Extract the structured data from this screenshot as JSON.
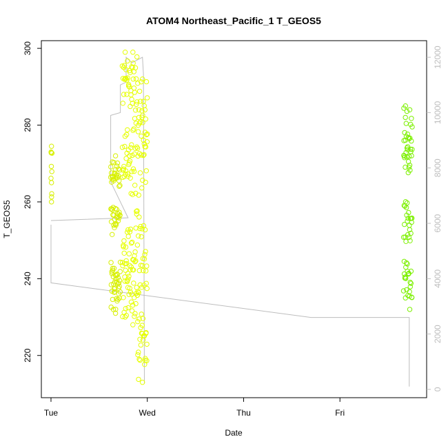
{
  "chart_data": {
    "type": "scatter",
    "title": "ATOM4 Northeast_Pacific_1 T_GEOS5",
    "xlabel": "Date",
    "ylabel": "T_GEOS5",
    "x_ticks": [
      "Tue",
      "Wed",
      "Thu",
      "Fri"
    ],
    "x_range_days": [
      -0.1,
      3.9
    ],
    "ylim": [
      209,
      302
    ],
    "y_ticks": [
      220,
      240,
      260,
      280,
      300
    ],
    "y2_ticks": [
      0,
      2000,
      4000,
      6000,
      8000,
      10000,
      12000
    ],
    "y2lim": [
      -300,
      12600
    ],
    "grid": false,
    "colors": {
      "early": "#d7f000",
      "mid": "#e6ff00",
      "late": "#7cf000",
      "altitude_line": "#bdbdbd"
    },
    "series": [
      {
        "segments": [
          {
            "x_start": 0.0,
            "x_end": 0.01,
            "y_min": 260,
            "y_max": 274.5,
            "color": "#d7f000"
          },
          {
            "x_start": 0.62,
            "x_end": 0.72,
            "y_min": 231,
            "y_max": 272,
            "color": "#d7f000"
          },
          {
            "x_start": 0.74,
            "x_end": 0.8,
            "y_min": 230,
            "y_max": 299,
            "color": "#e6ff00"
          },
          {
            "x_start": 0.8,
            "x_end": 0.9,
            "y_min": 228,
            "y_max": 299,
            "color": "#e6ff00"
          },
          {
            "x_start": 0.9,
            "x_end": 1.0,
            "y_min": 213,
            "y_max": 292,
            "color": "#e6ff00"
          },
          {
            "x_start": 3.66,
            "x_end": 3.7,
            "y_min": 235,
            "y_max": 285,
            "color": "#7cf000"
          },
          {
            "x_start": 3.7,
            "x_end": 3.75,
            "y_min": 232,
            "y_max": 284,
            "color": "#7cf000"
          }
        ]
      }
    ],
    "altitude_path": [
      [
        0.0,
        5950
      ],
      [
        0.0,
        3850
      ],
      [
        2.7,
        2600
      ],
      [
        3.72,
        2600
      ],
      [
        3.72,
        100
      ]
    ],
    "altitude_path_2": [
      [
        0.0,
        6100
      ],
      [
        0.8,
        6200
      ],
      [
        0.62,
        7500
      ],
      [
        0.62,
        9900
      ],
      [
        0.72,
        10000
      ],
      [
        0.72,
        11000
      ],
      [
        0.78,
        11100
      ],
      [
        0.78,
        12000
      ],
      [
        0.84,
        11800
      ],
      [
        0.95,
        12000
      ],
      [
        0.96,
        11400
      ],
      [
        0.97,
        200
      ]
    ]
  }
}
